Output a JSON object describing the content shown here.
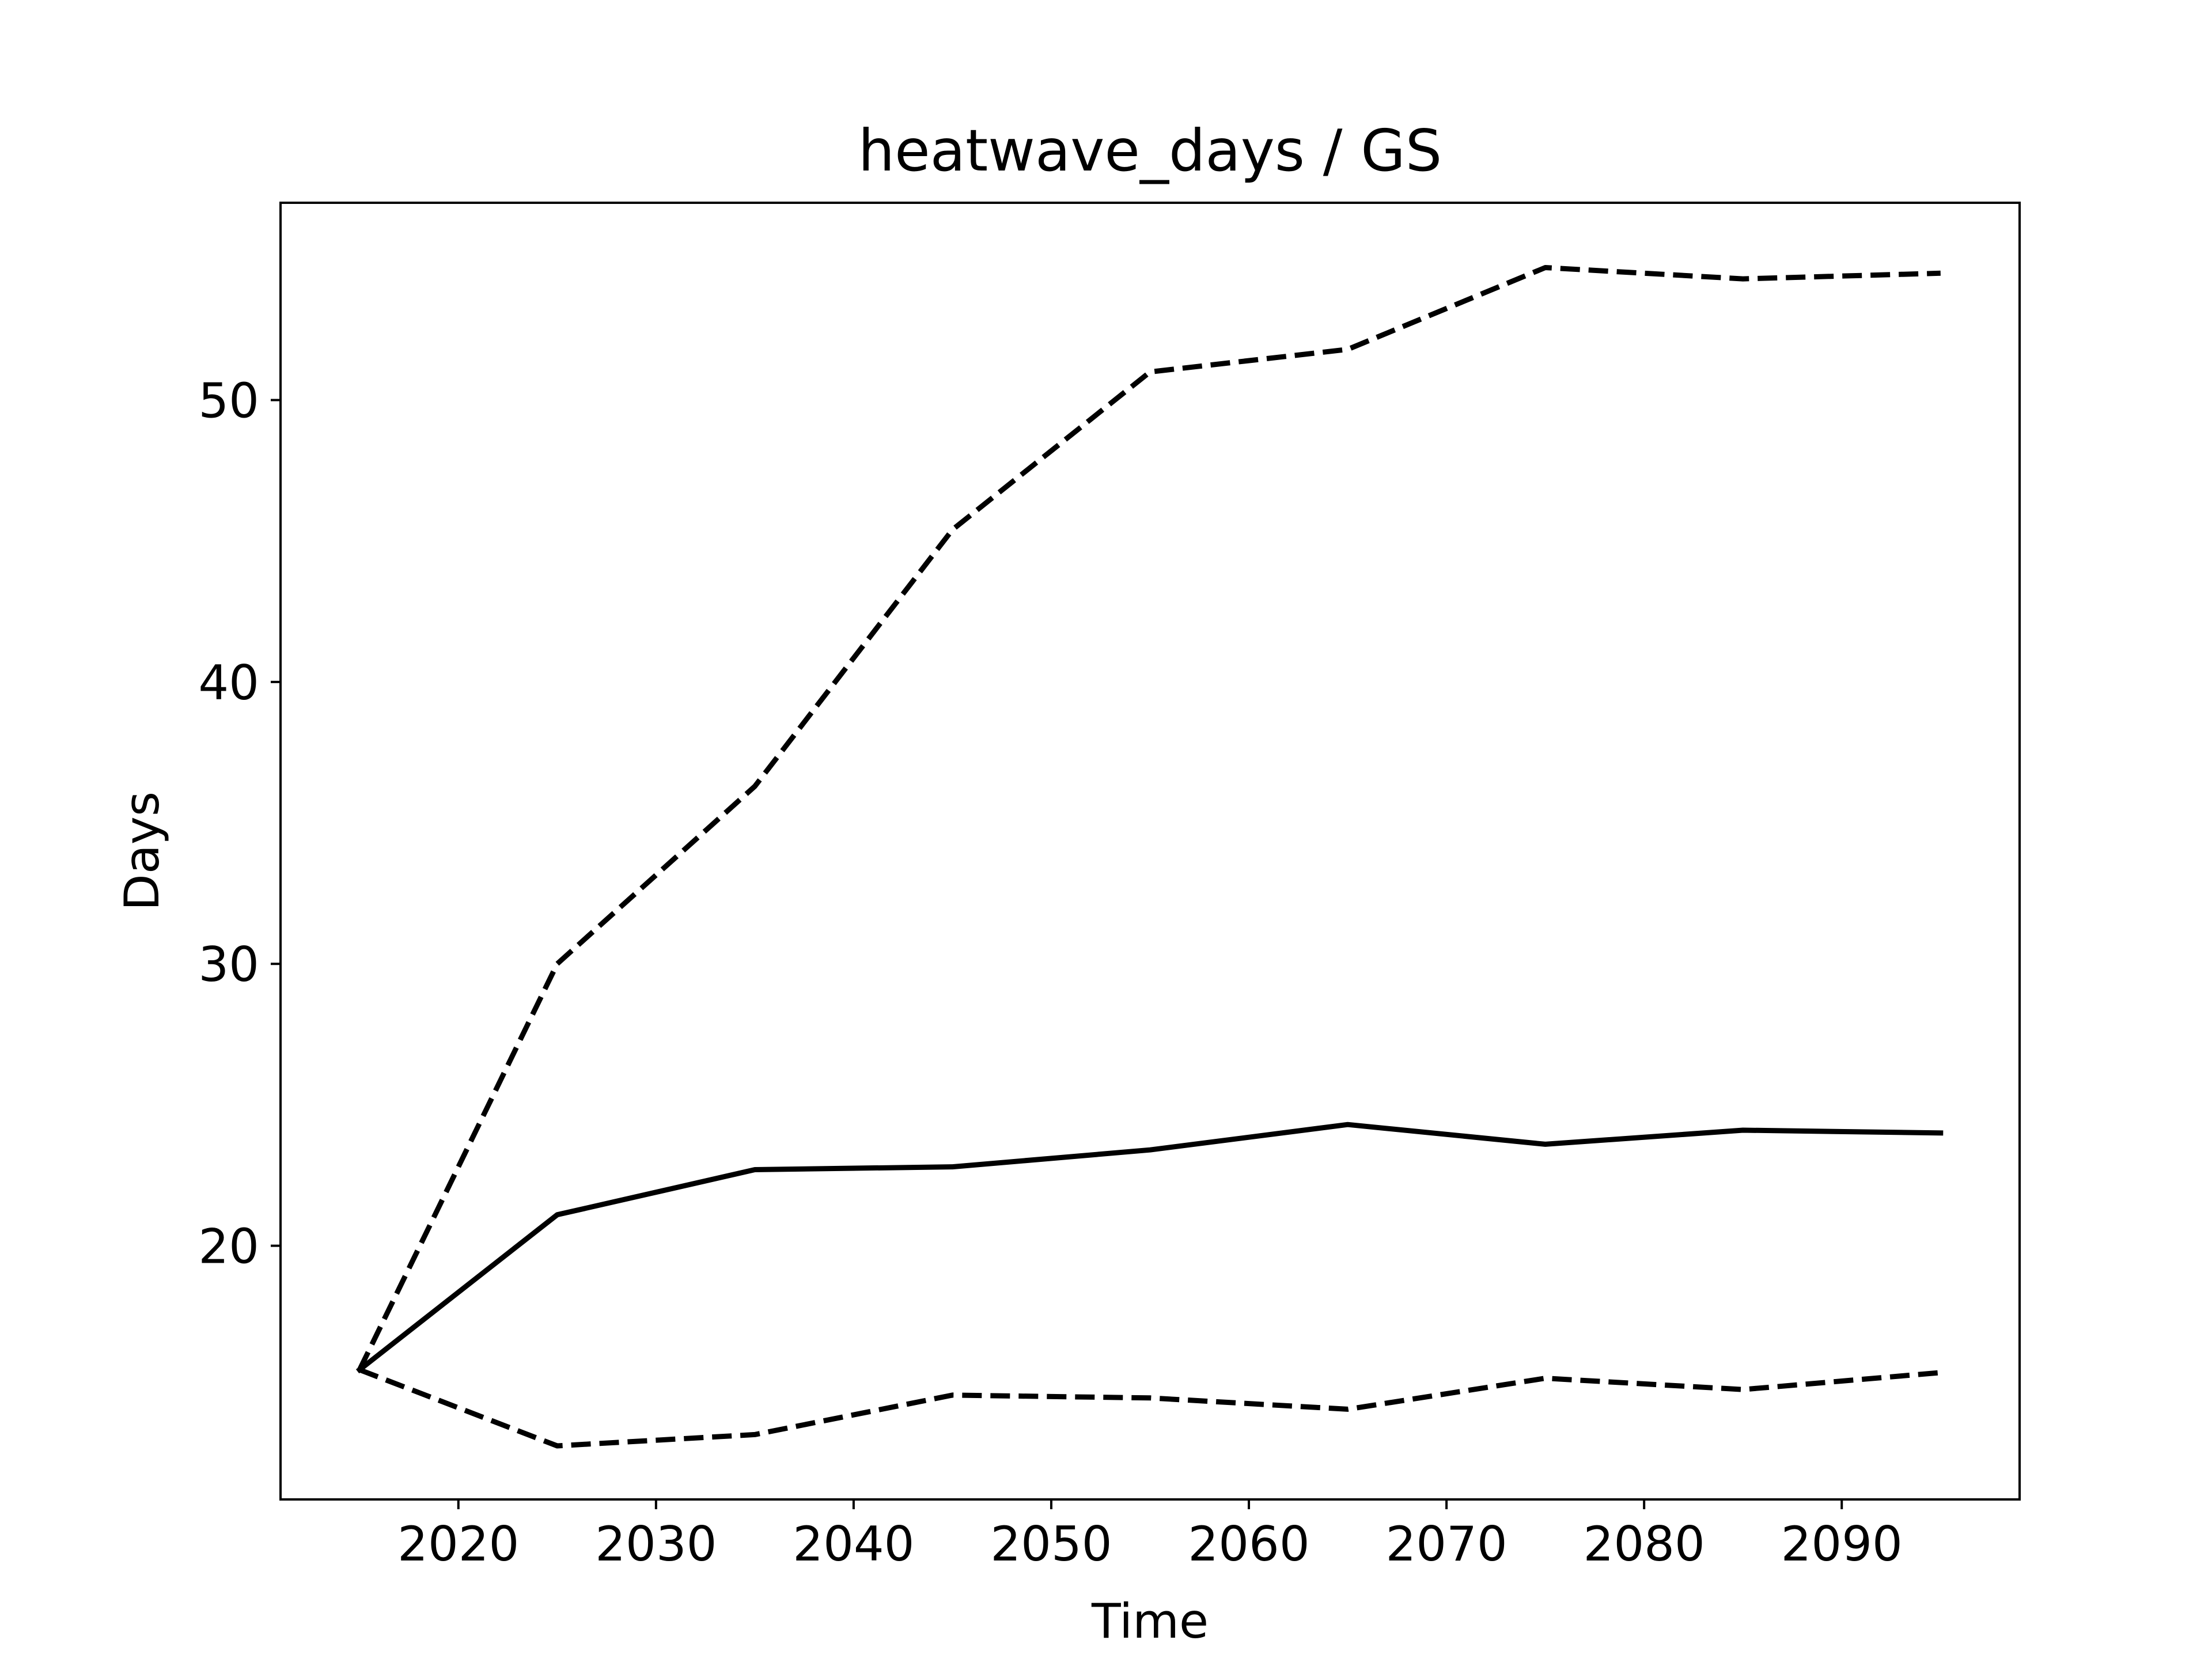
{
  "chart_data": {
    "type": "line",
    "title": "heatwave_days / GS",
    "xlabel": "Time",
    "ylabel": "Days",
    "xlim": [
      2011,
      2099
    ],
    "ylim": [
      11,
      57
    ],
    "xticks": [
      2020,
      2030,
      2040,
      2050,
      2060,
      2070,
      2080,
      2090
    ],
    "yticks": [
      20,
      30,
      40,
      50
    ],
    "grid": false,
    "x": [
      2015,
      2025,
      2035,
      2045,
      2055,
      2065,
      2075,
      2085,
      2095
    ],
    "series": [
      {
        "style": "solid",
        "color": "#000000",
        "values": [
          15.6,
          21.1,
          22.7,
          22.8,
          23.4,
          24.3,
          23.6,
          24.1,
          24.0
        ]
      },
      {
        "style": "dashed",
        "color": "#000000",
        "values": [
          15.6,
          30.0,
          36.3,
          45.4,
          51.0,
          51.8,
          54.7,
          54.3,
          54.5
        ]
      },
      {
        "style": "dashed",
        "color": "#000000",
        "values": [
          15.6,
          12.9,
          13.3,
          14.7,
          14.6,
          14.2,
          15.3,
          14.9,
          15.5
        ]
      }
    ]
  }
}
